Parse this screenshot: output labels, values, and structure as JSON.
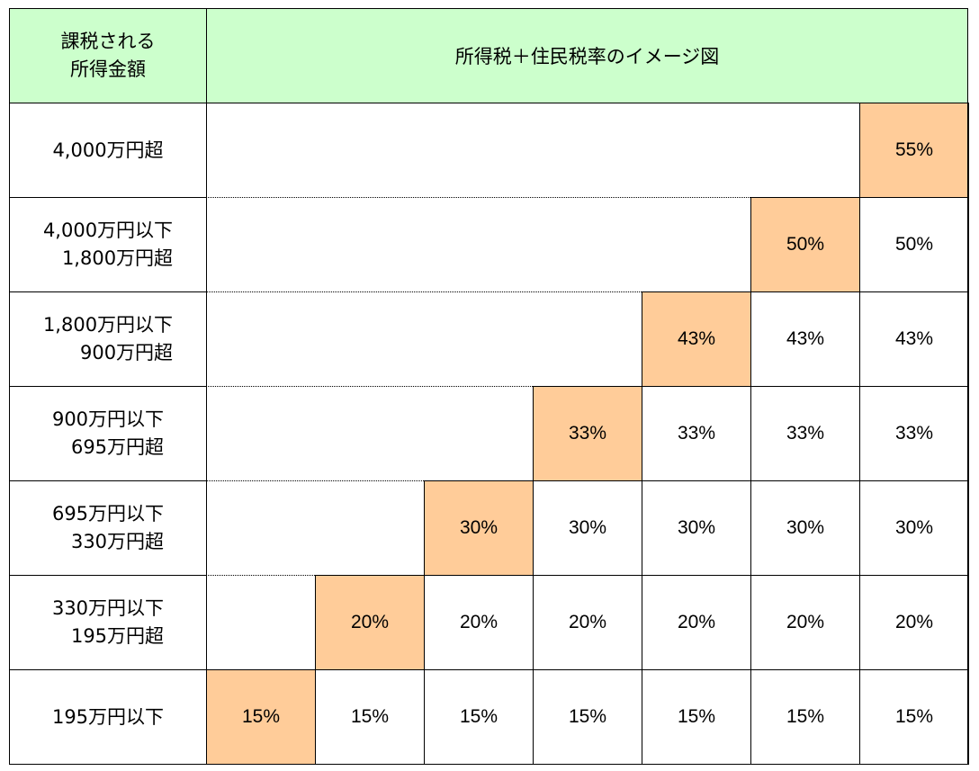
{
  "header": {
    "income_label": "課税される\n所得金額",
    "title": "所得税＋住民税率のイメージ図"
  },
  "colors": {
    "header_bg": "#ccffcc",
    "highlight": "#ffcc99"
  },
  "rows": [
    {
      "label": "4,000万円超",
      "rates": [
        "",
        "",
        "",
        "",
        "",
        "",
        "55%"
      ],
      "highlight_index": 6
    },
    {
      "label": "4,000万円以下\n1,800万円超",
      "rates": [
        "",
        "",
        "",
        "",
        "",
        "50%",
        "50%"
      ],
      "highlight_index": 5
    },
    {
      "label": "1,800万円以下\n900万円超",
      "rates": [
        "",
        "",
        "",
        "",
        "43%",
        "43%",
        "43%"
      ],
      "highlight_index": 4
    },
    {
      "label": "900万円以下\n695万円超",
      "rates": [
        "",
        "",
        "",
        "33%",
        "33%",
        "33%",
        "33%"
      ],
      "highlight_index": 3
    },
    {
      "label": "695万円以下\n330万円超",
      "rates": [
        "",
        "",
        "30%",
        "30%",
        "30%",
        "30%",
        "30%"
      ],
      "highlight_index": 2
    },
    {
      "label": "330万円以下\n195万円超",
      "rates": [
        "",
        "20%",
        "20%",
        "20%",
        "20%",
        "20%",
        "20%"
      ],
      "highlight_index": 1
    },
    {
      "label": "195万円以下",
      "rates": [
        "15%",
        "15%",
        "15%",
        "15%",
        "15%",
        "15%",
        "15%"
      ],
      "highlight_index": 0
    }
  ]
}
